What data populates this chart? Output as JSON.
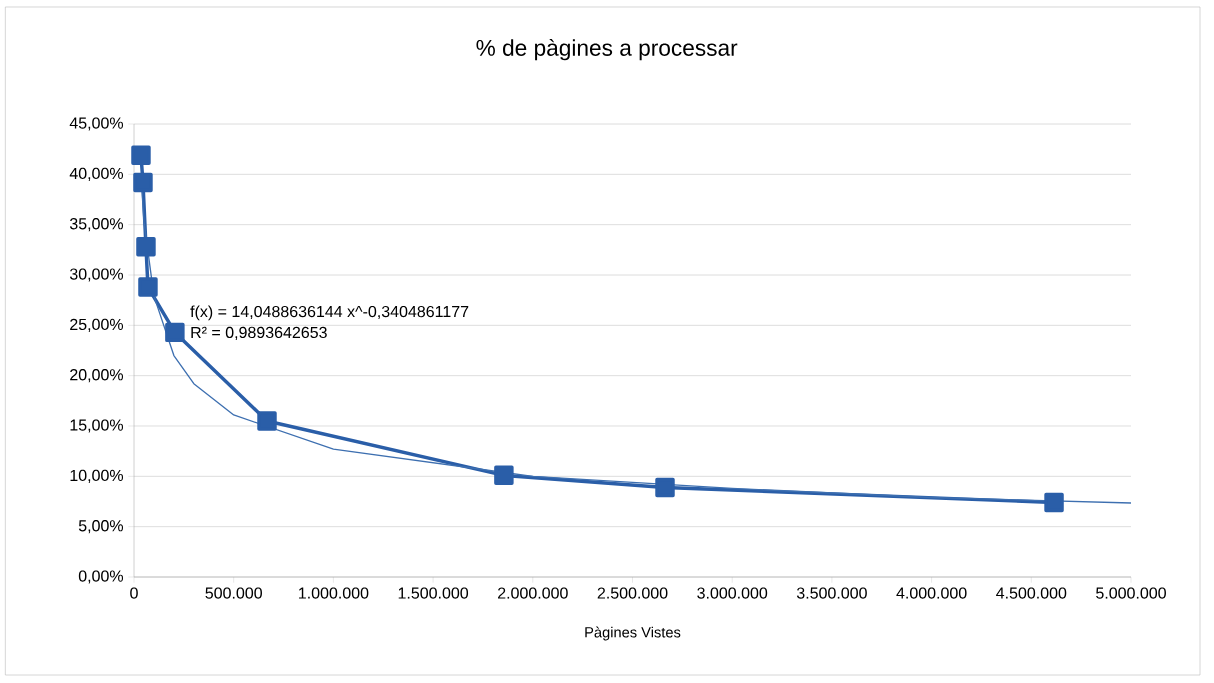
{
  "chart_data": {
    "type": "line",
    "title": "% de pàgines a processar",
    "xlabel": "Pàgines Vistes",
    "annotations": [
      "f(x) = 14,0488636144 x^-0,3404861177",
      "R² = 0,9893642653"
    ],
    "series": [
      {
        "color": "#2a5ea8",
        "marker": "square",
        "x": [
          35000,
          45000,
          60000,
          70000,
          205000,
          667000,
          1855000,
          2663000,
          4614000
        ],
        "values": [
          41.9,
          39.2,
          32.8,
          28.8,
          24.3,
          15.5,
          10.1,
          8.9,
          7.4
        ]
      },
      {
        "color": "#3d6fb0",
        "marker": "none",
        "x": [
          35000,
          50000,
          100000,
          200000,
          300000,
          500000,
          1000000,
          2000000,
          3000000,
          4000000,
          5000000
        ],
        "values": [
          39.9,
          35.3,
          27.9,
          22.0,
          19.2,
          16.1,
          12.7,
          10.0,
          8.8,
          7.9,
          7.35
        ]
      }
    ],
    "xlim": [
      0,
      5000000
    ],
    "ylim": [
      0,
      45
    ],
    "xticks": [
      0,
      {
        "value": 500000,
        "label": "500.000"
      },
      {
        "value": 1000000,
        "label": "1.000.000"
      },
      {
        "value": 1500000,
        "label": "1.500.000"
      },
      {
        "value": 2000000,
        "label": "2.000.000"
      },
      {
        "value": 2500000,
        "label": "2.500.000"
      },
      {
        "value": 3000000,
        "label": "3.000.000"
      },
      {
        "value": 3500000,
        "label": "3.500.000"
      },
      {
        "value": 4000000,
        "label": "4.000.000"
      },
      {
        "value": 4500000,
        "label": "4.500.000"
      },
      {
        "value": 5000000,
        "label": "5.000.000"
      }
    ],
    "yticks": [
      {
        "value": 0,
        "label": "0,00%"
      },
      {
        "value": 5,
        "label": "5,00%"
      },
      {
        "value": 10,
        "label": "10,00%"
      },
      {
        "value": 15,
        "label": "15,00%"
      },
      {
        "value": 20,
        "label": "20,00%"
      },
      {
        "value": 25,
        "label": "25,00%"
      },
      {
        "value": 30,
        "label": "30,00%"
      },
      {
        "value": 35,
        "label": "35,00%"
      },
      {
        "value": 40,
        "label": "40,00%"
      },
      {
        "value": 45,
        "label": "45,00%"
      }
    ],
    "grid": "y"
  }
}
